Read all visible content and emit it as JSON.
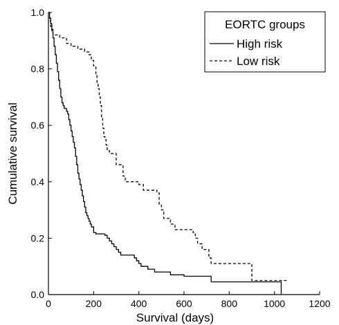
{
  "chart_data": {
    "type": "line",
    "chart_kind": "Kaplan-Meier step curves",
    "xlabel": "Survival (days)",
    "ylabel": "Cumulative survival",
    "xlim": [
      0,
      1200
    ],
    "ylim": [
      0,
      1.0
    ],
    "x_ticks": [
      0,
      200,
      400,
      600,
      800,
      1000,
      1200
    ],
    "x_tick_labels": [
      "0",
      "200",
      "400",
      "600",
      "800",
      "1000",
      "1200"
    ],
    "y_ticks": [
      0,
      0.2,
      0.4,
      0.6,
      0.8,
      1.0
    ],
    "y_tick_labels": [
      "0.0",
      "0.2",
      "0.4",
      "0.6",
      "0.8",
      "1.0"
    ],
    "grid": false,
    "legend": {
      "title": "EORTC groups",
      "position": "top-right",
      "entries": [
        "High risk",
        "Low risk"
      ]
    },
    "series": [
      {
        "name": "High risk",
        "line_style": "solid",
        "color": "#000000",
        "points": [
          [
            0,
            1.0
          ],
          [
            5,
            0.98
          ],
          [
            10,
            0.96
          ],
          [
            15,
            0.94
          ],
          [
            20,
            0.91
          ],
          [
            25,
            0.88
          ],
          [
            30,
            0.85
          ],
          [
            35,
            0.82
          ],
          [
            40,
            0.79
          ],
          [
            45,
            0.76
          ],
          [
            50,
            0.73
          ],
          [
            55,
            0.7
          ],
          [
            60,
            0.68
          ],
          [
            65,
            0.67
          ],
          [
            70,
            0.66
          ],
          [
            80,
            0.65
          ],
          [
            85,
            0.64
          ],
          [
            90,
            0.62
          ],
          [
            95,
            0.6
          ],
          [
            100,
            0.58
          ],
          [
            105,
            0.56
          ],
          [
            110,
            0.54
          ],
          [
            115,
            0.52
          ],
          [
            120,
            0.49
          ],
          [
            125,
            0.46
          ],
          [
            130,
            0.43
          ],
          [
            135,
            0.41
          ],
          [
            140,
            0.39
          ],
          [
            145,
            0.37
          ],
          [
            150,
            0.35
          ],
          [
            155,
            0.33
          ],
          [
            160,
            0.31
          ],
          [
            165,
            0.29
          ],
          [
            170,
            0.28
          ],
          [
            175,
            0.27
          ],
          [
            180,
            0.26
          ],
          [
            185,
            0.25
          ],
          [
            190,
            0.24
          ],
          [
            200,
            0.22
          ],
          [
            210,
            0.215
          ],
          [
            250,
            0.21
          ],
          [
            260,
            0.2
          ],
          [
            270,
            0.19
          ],
          [
            280,
            0.18
          ],
          [
            290,
            0.17
          ],
          [
            300,
            0.16
          ],
          [
            310,
            0.15
          ],
          [
            320,
            0.14
          ],
          [
            380,
            0.13
          ],
          [
            390,
            0.12
          ],
          [
            400,
            0.11
          ],
          [
            410,
            0.1
          ],
          [
            440,
            0.09
          ],
          [
            470,
            0.08
          ],
          [
            540,
            0.07
          ],
          [
            600,
            0.065
          ],
          [
            720,
            0.045
          ],
          [
            1030,
            0.0
          ]
        ]
      },
      {
        "name": "Low risk",
        "line_style": "dashed",
        "color": "#000000",
        "points": [
          [
            0,
            1.0
          ],
          [
            5,
            0.97
          ],
          [
            10,
            0.95
          ],
          [
            15,
            0.93
          ],
          [
            20,
            0.92
          ],
          [
            50,
            0.91
          ],
          [
            80,
            0.89
          ],
          [
            100,
            0.88
          ],
          [
            130,
            0.87
          ],
          [
            160,
            0.86
          ],
          [
            180,
            0.85
          ],
          [
            190,
            0.83
          ],
          [
            200,
            0.81
          ],
          [
            210,
            0.78
          ],
          [
            215,
            0.75
          ],
          [
            220,
            0.73
          ],
          [
            225,
            0.7
          ],
          [
            230,
            0.67
          ],
          [
            235,
            0.63
          ],
          [
            240,
            0.59
          ],
          [
            245,
            0.56
          ],
          [
            250,
            0.55
          ],
          [
            255,
            0.53
          ],
          [
            260,
            0.51
          ],
          [
            270,
            0.5
          ],
          [
            300,
            0.46
          ],
          [
            330,
            0.42
          ],
          [
            340,
            0.4
          ],
          [
            400,
            0.39
          ],
          [
            420,
            0.37
          ],
          [
            480,
            0.36
          ],
          [
            490,
            0.32
          ],
          [
            500,
            0.3
          ],
          [
            510,
            0.27
          ],
          [
            540,
            0.25
          ],
          [
            560,
            0.23
          ],
          [
            640,
            0.22
          ],
          [
            650,
            0.2
          ],
          [
            660,
            0.18
          ],
          [
            680,
            0.16
          ],
          [
            710,
            0.13
          ],
          [
            720,
            0.11
          ],
          [
            820,
            0.11
          ],
          [
            900,
            0.05
          ],
          [
            1060,
            0.05
          ]
        ]
      }
    ]
  }
}
